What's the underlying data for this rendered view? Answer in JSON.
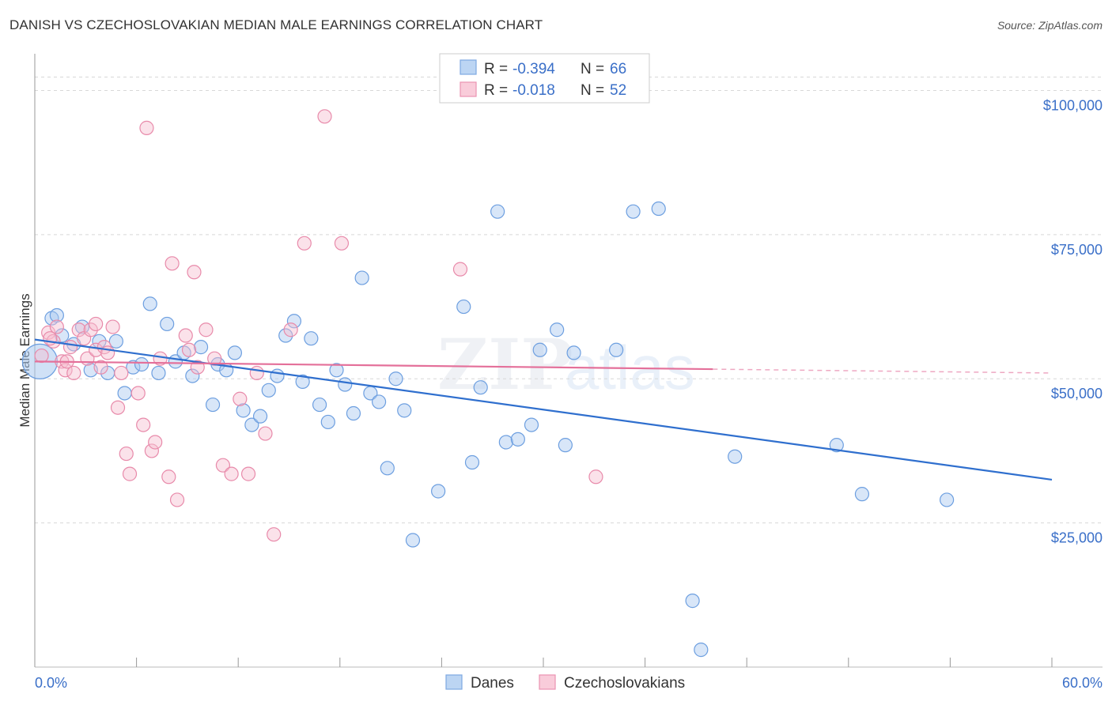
{
  "header": {
    "title": "DANISH VS CZECHOSLOVAKIAN MEDIAN MALE EARNINGS CORRELATION CHART",
    "source": "Source: ZipAtlas.com"
  },
  "legend": {
    "r_label": "R =",
    "n_label": "N =",
    "danes": {
      "r": "-0.394",
      "n": "66"
    },
    "czech": {
      "r": "-0.018",
      "n": "52"
    }
  },
  "watermark": {
    "zip": "ZIP",
    "atlas": "atlas"
  },
  "chart_data": {
    "type": "scatter",
    "ylabel": "Median Male Earnings",
    "xlim": [
      0,
      60
    ],
    "ylim": [
      0,
      105000
    ],
    "x_tick_labels": [
      "0.0%",
      "60.0%"
    ],
    "y_ticks": [
      {
        "value": 25000,
        "label": "$25,000"
      },
      {
        "value": 50000,
        "label": "$50,000"
      },
      {
        "value": 75000,
        "label": "$75,000"
      },
      {
        "value": 100000,
        "label": "$100,000"
      }
    ],
    "grid": true,
    "legend_position": "top-center",
    "series": [
      {
        "name": "Danes",
        "color": "#a9c8ef",
        "stroke": "#6d9fe0",
        "trend_color": "#2f6fce",
        "trend": {
          "x0": 0,
          "y0": 56800,
          "x1": 60,
          "y1": 32500,
          "solid_to": 60
        },
        "points": [
          [
            0.3,
            53000
          ],
          [
            1.0,
            60500
          ],
          [
            1.3,
            61000
          ],
          [
            1.6,
            57500
          ],
          [
            2.3,
            56000
          ],
          [
            2.8,
            59000
          ],
          [
            3.3,
            51500
          ],
          [
            3.8,
            56500
          ],
          [
            4.3,
            51000
          ],
          [
            4.8,
            56500
          ],
          [
            5.3,
            47500
          ],
          [
            5.8,
            52000
          ],
          [
            6.3,
            52500
          ],
          [
            6.8,
            63000
          ],
          [
            7.3,
            51000
          ],
          [
            7.8,
            59500
          ],
          [
            8.3,
            53000
          ],
          [
            8.8,
            54500
          ],
          [
            9.3,
            50500
          ],
          [
            9.8,
            55500
          ],
          [
            10.5,
            45500
          ],
          [
            10.8,
            52500
          ],
          [
            11.3,
            51500
          ],
          [
            11.8,
            54500
          ],
          [
            12.3,
            44500
          ],
          [
            12.8,
            42000
          ],
          [
            13.3,
            43500
          ],
          [
            13.8,
            48000
          ],
          [
            14.3,
            50500
          ],
          [
            14.8,
            57500
          ],
          [
            15.3,
            60000
          ],
          [
            15.8,
            49500
          ],
          [
            16.3,
            57000
          ],
          [
            16.8,
            45500
          ],
          [
            17.3,
            42500
          ],
          [
            17.8,
            51500
          ],
          [
            18.3,
            49000
          ],
          [
            18.8,
            44000
          ],
          [
            19.3,
            67500
          ],
          [
            19.8,
            47500
          ],
          [
            20.3,
            46000
          ],
          [
            20.8,
            34500
          ],
          [
            21.3,
            50000
          ],
          [
            21.8,
            44500
          ],
          [
            22.3,
            22000
          ],
          [
            23.8,
            30500
          ],
          [
            25.3,
            62500
          ],
          [
            25.8,
            35500
          ],
          [
            26.3,
            48500
          ],
          [
            27.3,
            79000
          ],
          [
            27.8,
            39000
          ],
          [
            28.5,
            39500
          ],
          [
            29.3,
            42000
          ],
          [
            29.8,
            55000
          ],
          [
            30.8,
            58500
          ],
          [
            31.3,
            38500
          ],
          [
            31.8,
            54500
          ],
          [
            34.3,
            55000
          ],
          [
            35.3,
            79000
          ],
          [
            36.8,
            79500
          ],
          [
            38.8,
            11500
          ],
          [
            39.3,
            3000
          ],
          [
            41.3,
            36500
          ],
          [
            47.3,
            38500
          ],
          [
            48.8,
            30000
          ],
          [
            53.8,
            29000
          ]
        ]
      },
      {
        "name": "Czechoslovakians",
        "color": "#f7bfd1",
        "stroke": "#e88aaa",
        "trend_color": "#e4709a",
        "trend": {
          "x0": 0,
          "y0": 53000,
          "x1": 60,
          "y1": 51000,
          "solid_to": 40
        },
        "points": [
          [
            0.4,
            54000
          ],
          [
            0.8,
            58000
          ],
          [
            1.1,
            56500
          ],
          [
            1.3,
            59000
          ],
          [
            1.6,
            53000
          ],
          [
            1.8,
            51500
          ],
          [
            2.1,
            55500
          ],
          [
            2.3,
            51000
          ],
          [
            2.6,
            58500
          ],
          [
            2.9,
            57000
          ],
          [
            3.1,
            53500
          ],
          [
            3.3,
            58500
          ],
          [
            3.6,
            55000
          ],
          [
            3.9,
            52000
          ],
          [
            4.1,
            55500
          ],
          [
            4.3,
            54500
          ],
          [
            4.6,
            59000
          ],
          [
            4.9,
            45000
          ],
          [
            5.1,
            51000
          ],
          [
            5.4,
            37000
          ],
          [
            5.6,
            33500
          ],
          [
            6.1,
            47500
          ],
          [
            6.4,
            42000
          ],
          [
            6.9,
            37500
          ],
          [
            7.1,
            39000
          ],
          [
            7.4,
            53500
          ],
          [
            7.9,
            33000
          ],
          [
            8.1,
            70000
          ],
          [
            8.4,
            29000
          ],
          [
            8.9,
            57500
          ],
          [
            9.1,
            55000
          ],
          [
            9.4,
            68500
          ],
          [
            10.1,
            58500
          ],
          [
            10.6,
            53500
          ],
          [
            11.1,
            35000
          ],
          [
            11.6,
            33500
          ],
          [
            12.1,
            46500
          ],
          [
            12.6,
            33500
          ],
          [
            13.1,
            51000
          ],
          [
            13.6,
            40500
          ],
          [
            14.1,
            23000
          ],
          [
            15.1,
            58500
          ],
          [
            15.9,
            73500
          ],
          [
            17.1,
            95500
          ],
          [
            18.1,
            73500
          ],
          [
            25.1,
            69000
          ],
          [
            33.1,
            33000
          ],
          [
            6.6,
            93500
          ],
          [
            3.6,
            59500
          ],
          [
            1.9,
            53000
          ],
          [
            0.9,
            57000
          ],
          [
            9.6,
            52000
          ]
        ]
      }
    ]
  }
}
